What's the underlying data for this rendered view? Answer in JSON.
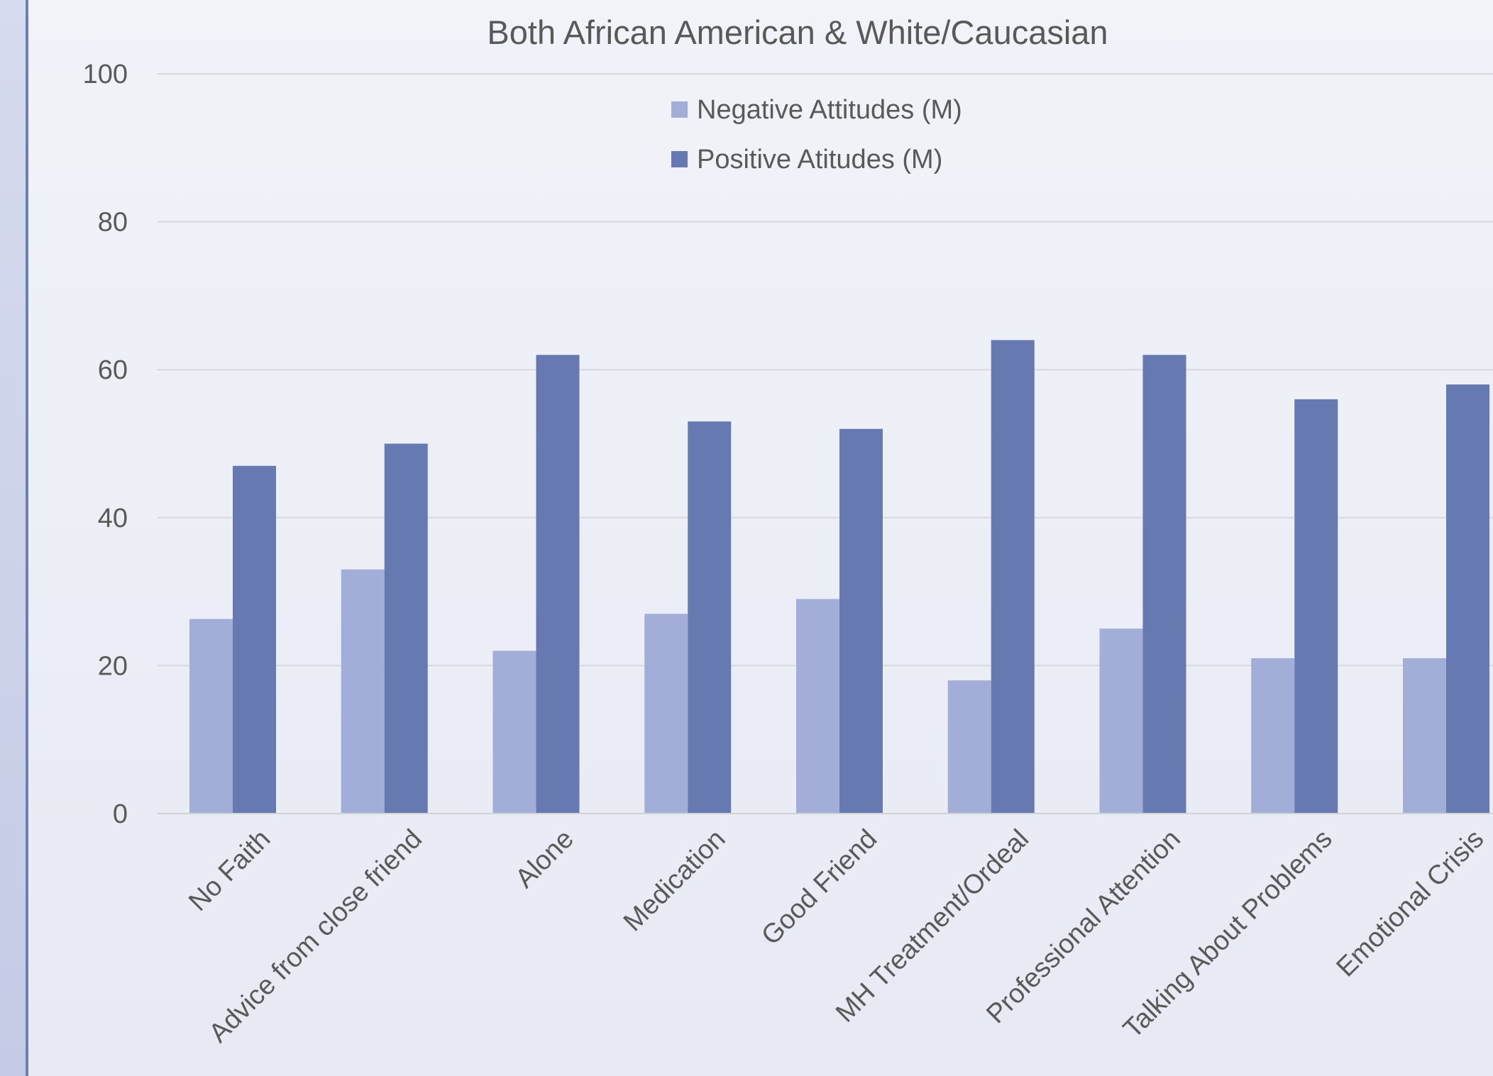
{
  "chart_data": {
    "type": "bar",
    "title": "Both African American & White/Caucasian",
    "xlabel": "",
    "ylabel": "",
    "ylim": [
      0,
      100
    ],
    "yticks": [
      0,
      20,
      40,
      60,
      80,
      100
    ],
    "grid": true,
    "legend_position": "top-center",
    "categories": [
      "No Faith",
      "Advice from close friend",
      "Alone",
      "Medication",
      "Good Friend",
      "MH Treatment/Ordeal",
      "Professional Attention",
      "Talking About Problems",
      "Emotional Crisis"
    ],
    "series": [
      {
        "name": "Negative Attitudes (M)",
        "color": "#a3aed8",
        "values": [
          26.3,
          33,
          22,
          27,
          29,
          18,
          25,
          21,
          21
        ]
      },
      {
        "name": "Positive Atitudes (M)",
        "color": "#6679b1",
        "values": [
          47,
          50,
          62,
          53,
          52,
          64,
          62,
          56,
          58
        ]
      }
    ]
  }
}
